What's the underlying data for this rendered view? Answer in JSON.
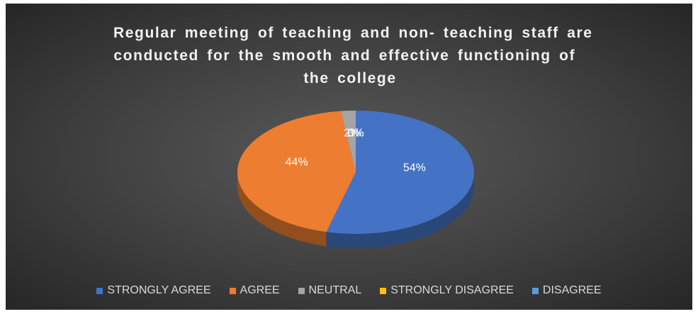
{
  "chart_data": {
    "type": "pie3d",
    "title": [
      "Regular meeting of teaching and non- teaching staff are",
      "conducted for the smooth and effective functioning of",
      "the college"
    ],
    "categories": [
      "STRONGLY AGREE",
      "AGREE",
      "NEUTRAL",
      "STRONGLY DISAGREE",
      "DISAGREE"
    ],
    "values": [
      54,
      44,
      2,
      0,
      0
    ],
    "value_labels": [
      "54%",
      "44%",
      "2%",
      "0%",
      "0%"
    ],
    "colors": [
      "#4472c4",
      "#ed7d31",
      "#a5a5a5",
      "#ffc000",
      "#5b9bd5"
    ],
    "legend": "bottom"
  }
}
